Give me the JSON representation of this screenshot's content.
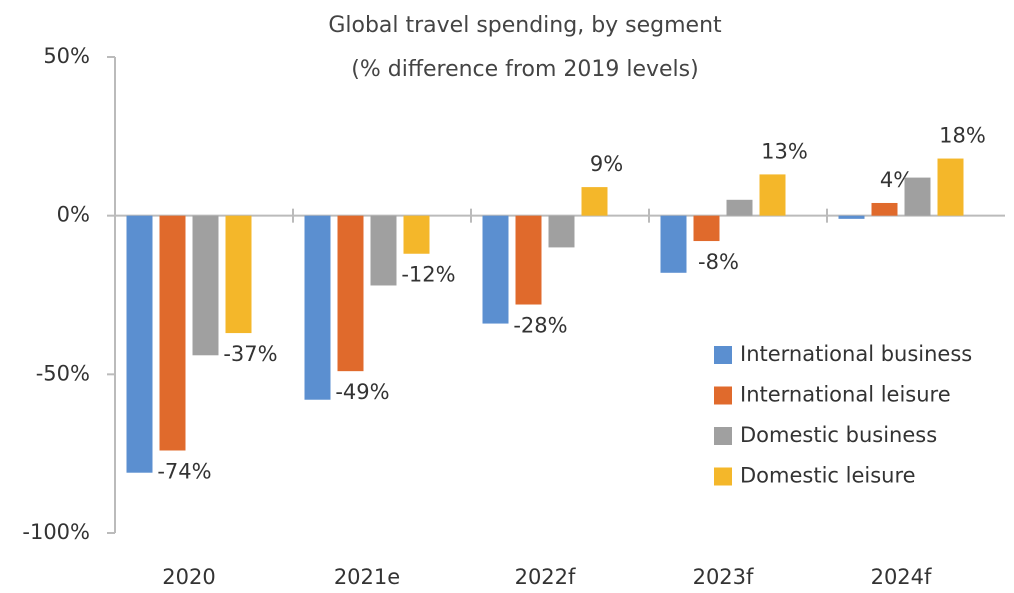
{
  "chart_data": {
    "type": "bar",
    "title": "Global travel spending, by segment",
    "subtitle": "(% difference from 2019 levels)",
    "categories": [
      "2020",
      "2021e",
      "2022f",
      "2023f",
      "2024f"
    ],
    "series": [
      {
        "name": "International business",
        "color": "#5b8fd0",
        "values": [
          -81,
          -58,
          -34,
          -18,
          -1
        ],
        "value_labels": [
          null,
          null,
          null,
          null,
          null
        ]
      },
      {
        "name": "International leisure",
        "color": "#e06a2c",
        "values": [
          -74,
          -49,
          -28,
          -8,
          4
        ],
        "value_labels": [
          "-74%",
          "-49%",
          "-28%",
          "-8%",
          "4%"
        ]
      },
      {
        "name": "Domestic business",
        "color": "#a0a0a0",
        "values": [
          -44,
          -22,
          -10,
          5,
          12
        ],
        "value_labels": [
          null,
          null,
          null,
          null,
          null
        ]
      },
      {
        "name": "Domestic leisure",
        "color": "#f4b72a",
        "values": [
          -37,
          -12,
          9,
          13,
          18
        ],
        "value_labels": [
          "-37%",
          "-12%",
          "9%",
          "13%",
          "18%"
        ]
      }
    ],
    "ylim": [
      -100,
      50
    ],
    "yticks": [
      {
        "value": -100,
        "label": "-100%"
      },
      {
        "value": -50,
        "label": "-50%"
      },
      {
        "value": 0,
        "label": "0%"
      },
      {
        "value": 50,
        "label": "50%"
      }
    ],
    "legend": "right"
  }
}
